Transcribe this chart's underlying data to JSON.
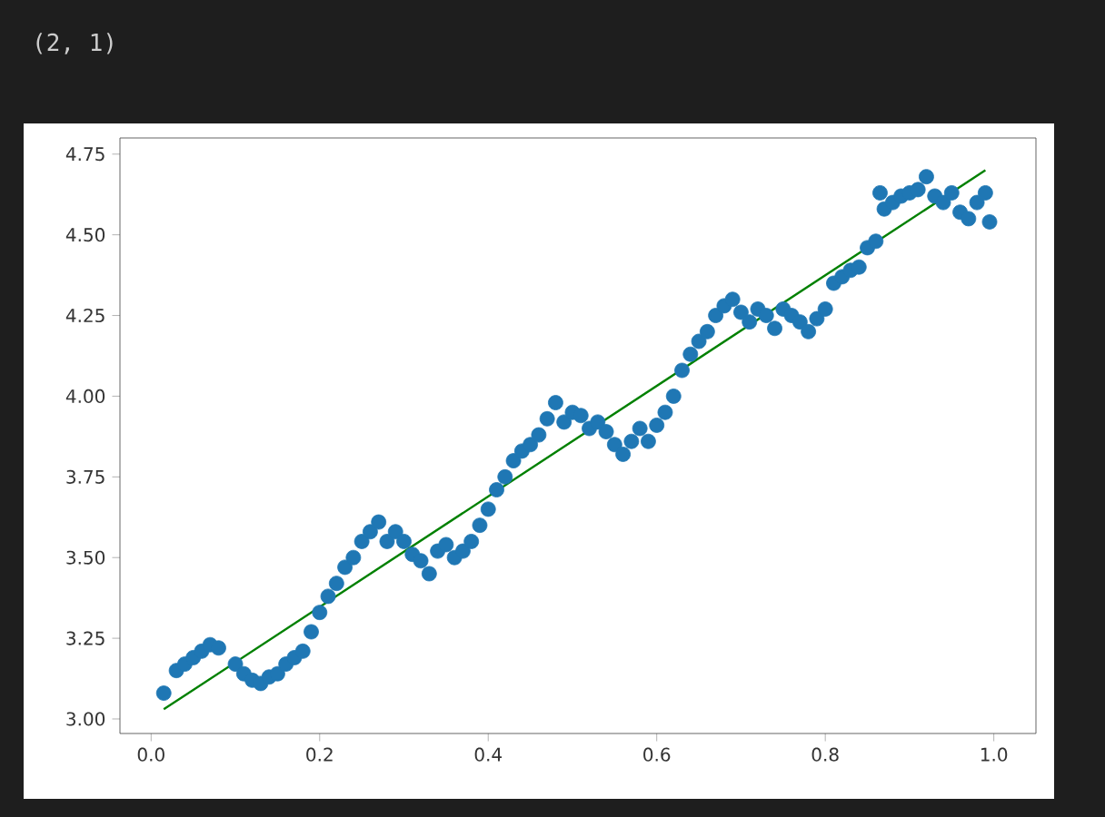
{
  "chart_data": {
    "type": "scatter",
    "annotations": [
      "(2, 1)"
    ],
    "xlim": [
      -0.037,
      1.05
    ],
    "ylim": [
      2.955,
      4.8
    ],
    "xticks": [
      {
        "value": 0.0,
        "label": "0.0"
      },
      0.2,
      0.4,
      0.6,
      0.8,
      {
        "value": 1.0,
        "label": "1.0"
      }
    ],
    "yticks": [
      {
        "value": 3.0,
        "label": "3.00"
      },
      3.25,
      {
        "value": 3.5,
        "label": "3.50"
      },
      3.75,
      {
        "value": 4.0,
        "label": "4.00"
      },
      4.25,
      {
        "value": 4.5,
        "label": "4.50"
      },
      4.75
    ],
    "grid": false,
    "series": [
      {
        "color": "#1f77b4",
        "marker": "circle",
        "x": [
          0.015,
          0.03,
          0.04,
          0.05,
          0.06,
          0.07,
          0.08,
          0.1,
          0.11,
          0.12,
          0.13,
          0.14,
          0.15,
          0.16,
          0.17,
          0.18,
          0.19,
          0.2,
          0.21,
          0.22,
          0.23,
          0.24,
          0.25,
          0.26,
          0.27,
          0.28,
          0.29,
          0.3,
          0.31,
          0.32,
          0.33,
          0.34,
          0.35,
          0.36,
          0.37,
          0.38,
          0.39,
          0.4,
          0.41,
          0.42,
          0.43,
          0.44,
          0.45,
          0.46,
          0.47,
          0.48,
          0.49,
          0.5,
          0.51,
          0.52,
          0.53,
          0.54,
          0.55,
          0.56,
          0.57,
          0.58,
          0.59,
          0.6,
          0.61,
          0.62,
          0.63,
          0.64,
          0.65,
          0.66,
          0.67,
          0.68,
          0.69,
          0.7,
          0.71,
          0.72,
          0.73,
          0.74,
          0.75,
          0.76,
          0.77,
          0.78,
          0.79,
          0.8,
          0.81,
          0.82,
          0.83,
          0.84,
          0.85,
          0.86,
          0.865,
          0.87,
          0.88,
          0.89,
          0.9,
          0.91,
          0.92,
          0.93,
          0.94,
          0.95,
          0.96,
          0.97,
          0.98,
          0.99,
          0.995
        ],
        "values": [
          3.08,
          3.15,
          3.17,
          3.19,
          3.21,
          3.23,
          3.22,
          3.17,
          3.14,
          3.12,
          3.11,
          3.13,
          3.14,
          3.17,
          3.19,
          3.21,
          3.27,
          3.33,
          3.38,
          3.42,
          3.47,
          3.5,
          3.55,
          3.58,
          3.61,
          3.55,
          3.58,
          3.55,
          3.51,
          3.49,
          3.45,
          3.52,
          3.54,
          3.5,
          3.52,
          3.55,
          3.6,
          3.65,
          3.71,
          3.75,
          3.8,
          3.83,
          3.85,
          3.88,
          3.93,
          3.98,
          3.92,
          3.95,
          3.94,
          3.9,
          3.92,
          3.89,
          3.85,
          3.82,
          3.86,
          3.9,
          3.86,
          3.91,
          3.95,
          4.0,
          4.08,
          4.13,
          4.17,
          4.2,
          4.25,
          4.28,
          4.3,
          4.26,
          4.23,
          4.27,
          4.25,
          4.21,
          4.27,
          4.25,
          4.23,
          4.2,
          4.24,
          4.27,
          4.35,
          4.37,
          4.39,
          4.4,
          4.46,
          4.48,
          4.63,
          4.58,
          4.6,
          4.62,
          4.63,
          4.64,
          4.68,
          4.62,
          4.6,
          4.63,
          4.57,
          4.55,
          4.6,
          4.63,
          4.54
        ]
      },
      {
        "type": "line",
        "color": "#008000",
        "marker": "none",
        "x": [
          0.015,
          0.99
        ],
        "values": [
          3.03,
          4.7
        ]
      }
    ]
  }
}
